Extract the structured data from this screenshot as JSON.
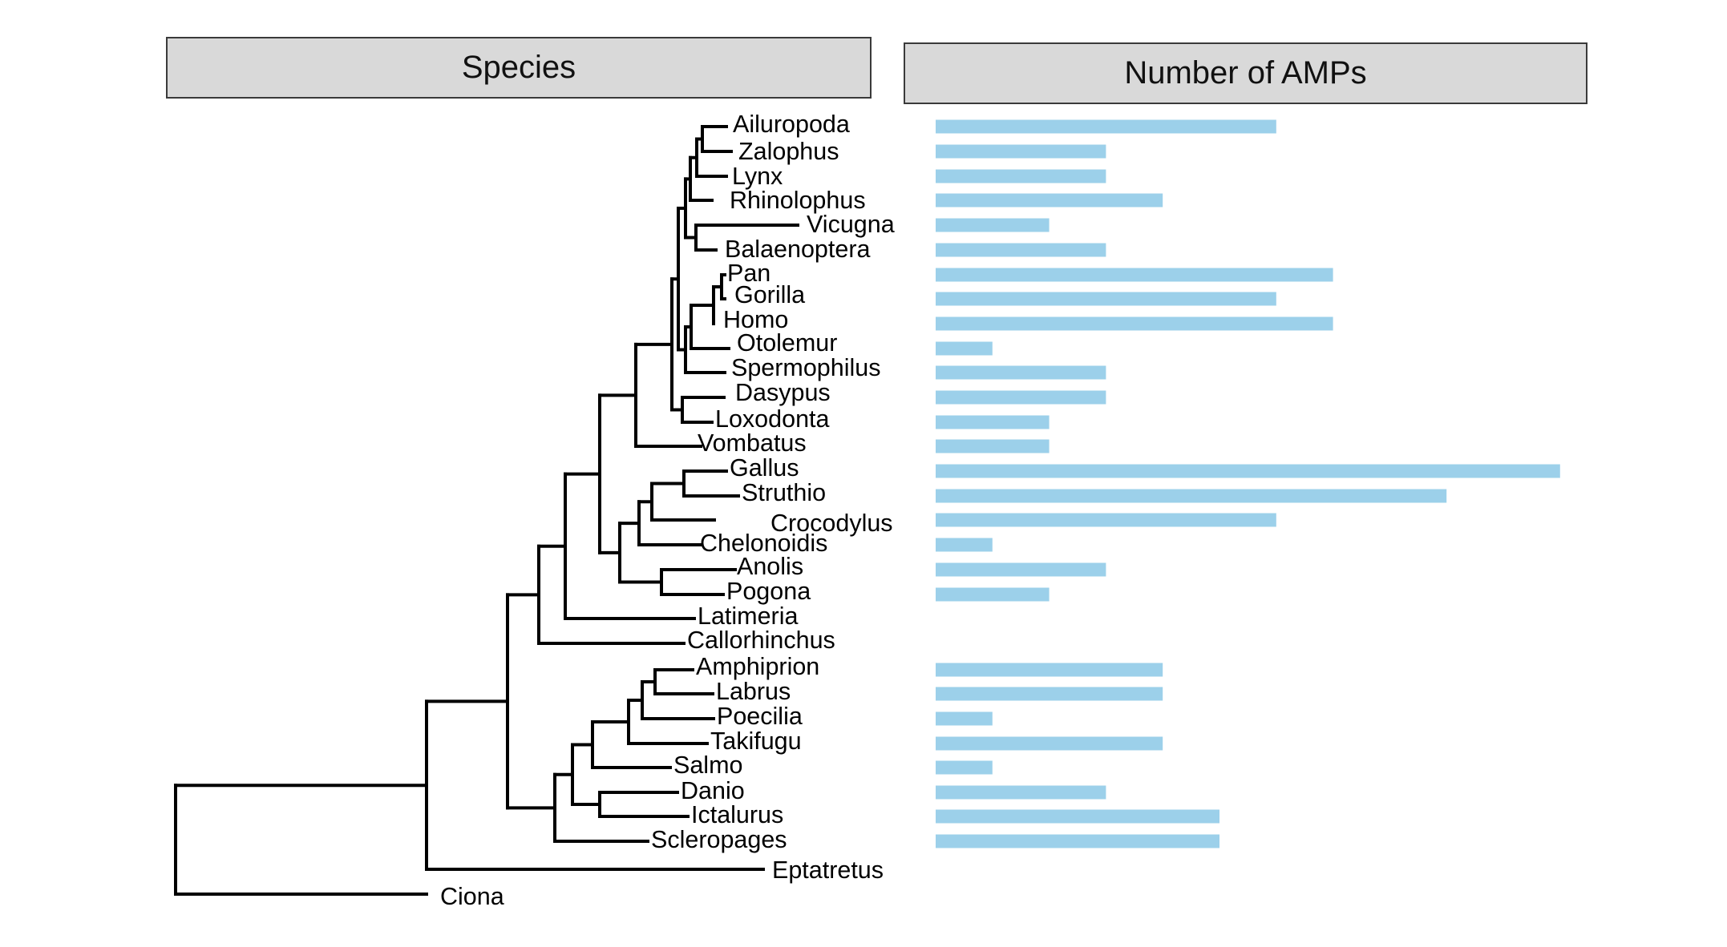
{
  "headers": {
    "species": "Species",
    "amps": "Number of AMPs"
  },
  "colors": {
    "bar": "#9cd0ea",
    "tree": "#000000",
    "header_bg": "#d9d9d9"
  },
  "chart_data": {
    "type": "bar",
    "orientation": "horizontal",
    "categories": [
      "Ailuropoda",
      "Zalophus",
      "Lynx",
      "Rhinolophus",
      "Vicugna",
      "Balaenoptera",
      "Pan",
      "Gorilla",
      "Homo",
      "Otolemur",
      "Spermophilus",
      "Dasypus",
      "Loxodonta",
      "Vombatus",
      "Gallus",
      "Struthio",
      "Crocodylus",
      "Chelonoidis",
      "Anolis",
      "Pogona",
      "Latimeria",
      "Callorhinchus",
      "Amphiprion",
      "Labrus",
      "Poecilia",
      "Takifugu",
      "Salmo",
      "Danio",
      "Ictalurus",
      "Scleropages",
      "Eptatretus",
      "Ciona"
    ],
    "values": [
      6,
      3,
      3,
      4,
      2,
      3,
      7,
      6,
      7,
      1,
      3,
      3,
      2,
      2,
      11,
      9,
      6,
      1,
      3,
      2,
      0,
      0,
      4,
      4,
      1,
      4,
      1,
      3,
      5,
      5,
      0,
      0
    ],
    "xlabel": "Number of AMPs",
    "ylabel": "Species",
    "xlim": [
      0,
      11
    ],
    "grid": false,
    "legend": "none"
  }
}
